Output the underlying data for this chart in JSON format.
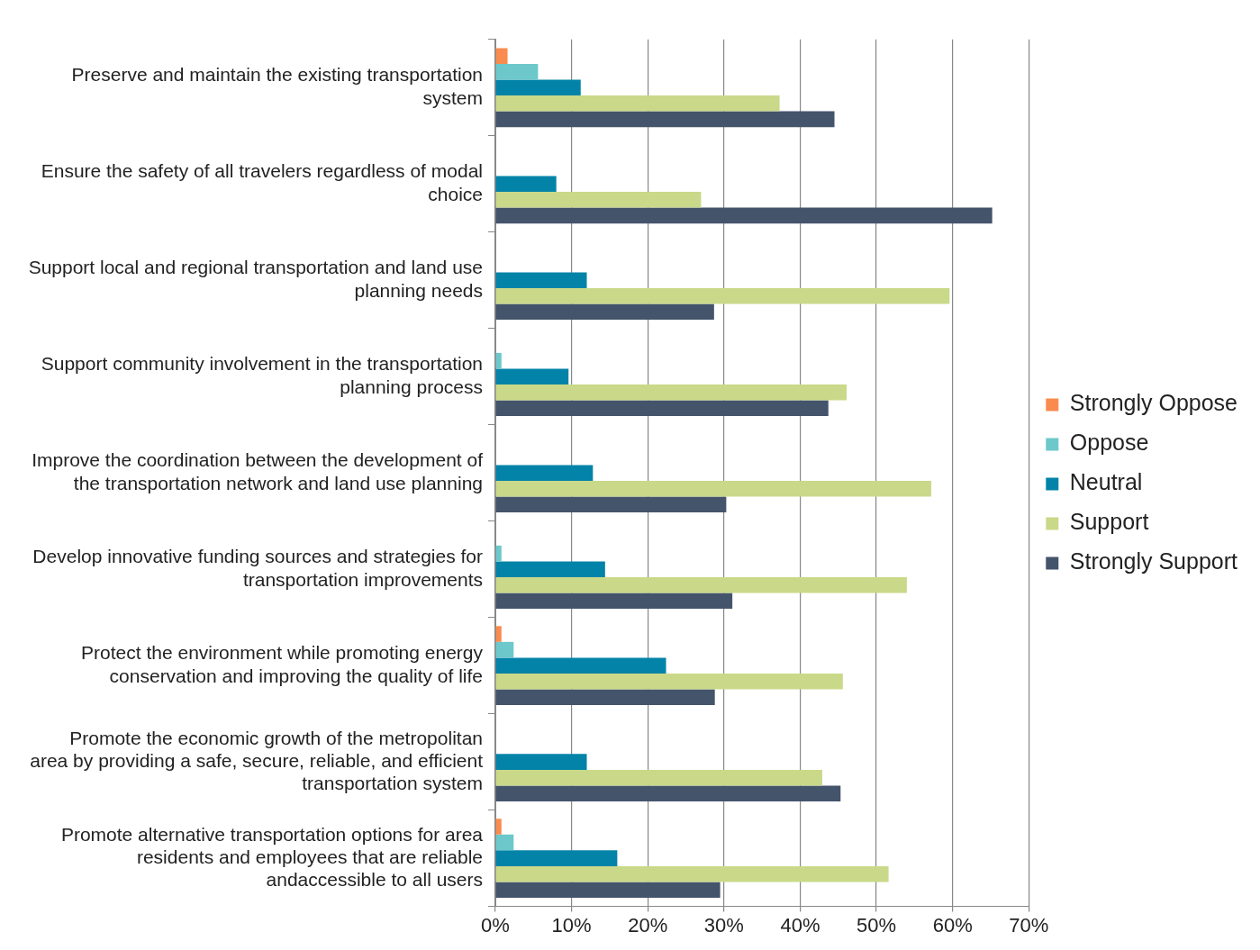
{
  "chart_data": {
    "type": "bar",
    "orientation": "horizontal",
    "categories": [
      "Preserve and maintain the existing transportation system",
      "Ensure the safety of all travelers regardless of modal choice",
      "Support local and regional transportation and land use planning needs",
      "Support community involvement in the transportation planning process",
      "Improve the coordination between the development of the transportation network and land use planning",
      "Develop innovative funding sources and strategies for transportation improvements",
      "Protect the environment while promoting energy conservation and improving the quality of life",
      "Promote the economic growth of the metropolitan area by providing a safe, secure, reliable, and efficient transportation system",
      "Promote alternative transportation options for area residents and employees that are reliable andaccessible to all users"
    ],
    "series": [
      {
        "name": "Strongly Oppose",
        "color": "#fa8b4e",
        "values": [
          1.6,
          0,
          0,
          0,
          0,
          0,
          0.8,
          0,
          0.8
        ]
      },
      {
        "name": "Oppose",
        "color": "#6cc8ca",
        "values": [
          5.6,
          0,
          0,
          0.8,
          0,
          0.8,
          2.4,
          0,
          2.4
        ]
      },
      {
        "name": "Neutral",
        "color": "#0383a8",
        "values": [
          11.2,
          8,
          12,
          9.6,
          12.8,
          14.4,
          22.4,
          12,
          16
        ]
      },
      {
        "name": "Support",
        "color": "#c9d989",
        "values": [
          37.3,
          27,
          59.6,
          46.1,
          57.2,
          54,
          45.6,
          42.9,
          51.6
        ]
      },
      {
        "name": "Strongly Support",
        "color": "#44546b",
        "values": [
          44.5,
          65.2,
          28.7,
          43.7,
          30.3,
          31.1,
          28.8,
          45.3,
          29.5
        ]
      }
    ],
    "xlim": [
      0,
      70
    ],
    "xticks": [
      {
        "value": 0,
        "label": "0%"
      },
      {
        "value": 10,
        "label": "10%"
      },
      {
        "value": 20,
        "label": "20%"
      },
      {
        "value": 30,
        "label": "30%"
      },
      {
        "value": 40,
        "label": "40%"
      },
      {
        "value": 50,
        "label": "50%"
      },
      {
        "value": 60,
        "label": "60%"
      },
      {
        "value": 70,
        "label": "70%"
      }
    ],
    "grid": "x",
    "legend": "right"
  }
}
